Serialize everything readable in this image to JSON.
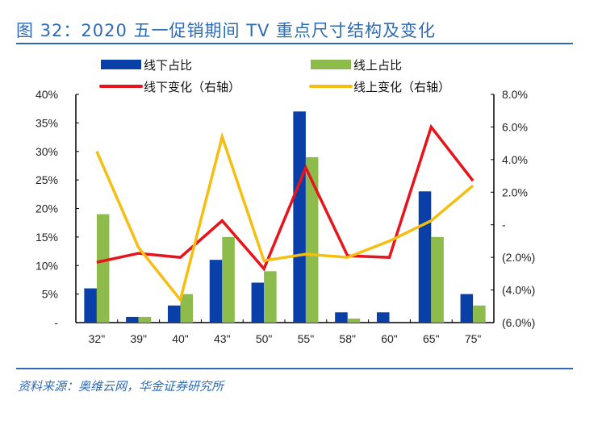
{
  "title": "图 32：2020 五一促销期间 TV 重点尺寸结构及变化",
  "source": "资料来源：奥维云网，华金证券研究所",
  "chart_data": {
    "type": "bar+line",
    "categories": [
      "32\"",
      "39\"",
      "40\"",
      "43\"",
      "50\"",
      "55\"",
      "58\"",
      "60\"",
      "65\"",
      "75\""
    ],
    "left_axis": {
      "ylim": [
        0,
        40
      ],
      "ticks": [
        "-",
        "5%",
        "10%",
        "15%",
        "20%",
        "25%",
        "30%",
        "35%",
        "40%"
      ]
    },
    "right_axis": {
      "ylim": [
        -6,
        8
      ],
      "ticks": [
        "(6.0%)",
        "(4.0%)",
        "(2.0%)",
        "-",
        "2.0%",
        "4.0%",
        "6.0%",
        "8.0%"
      ],
      "negative_color": "#e02020"
    },
    "series": [
      {
        "name": "线下占比",
        "kind": "bar",
        "axis": "left",
        "color": "#0a3fa8",
        "values": [
          6,
          1,
          3,
          11,
          7,
          37,
          1.8,
          1.8,
          23,
          5
        ]
      },
      {
        "name": "线上占比",
        "kind": "bar",
        "axis": "left",
        "color": "#8dbb4c",
        "values": [
          19,
          1,
          5,
          15,
          9,
          29,
          0.7,
          0,
          15,
          3
        ]
      },
      {
        "name": "线下变化（右轴）",
        "kind": "line",
        "axis": "right",
        "color": "#e8141b",
        "values": [
          -2.3,
          -1.75,
          -2.0,
          0.25,
          -2.7,
          3.5,
          -1.9,
          -2.0,
          6.0,
          2.7
        ]
      },
      {
        "name": "线上变化（右轴）",
        "kind": "line",
        "axis": "right",
        "color": "#f5be12",
        "values": [
          4.5,
          -1.4,
          -4.6,
          5.4,
          -2.2,
          -1.8,
          -2.0,
          -1.0,
          0.25,
          2.4
        ]
      }
    ],
    "legend": "top",
    "grid": false
  }
}
